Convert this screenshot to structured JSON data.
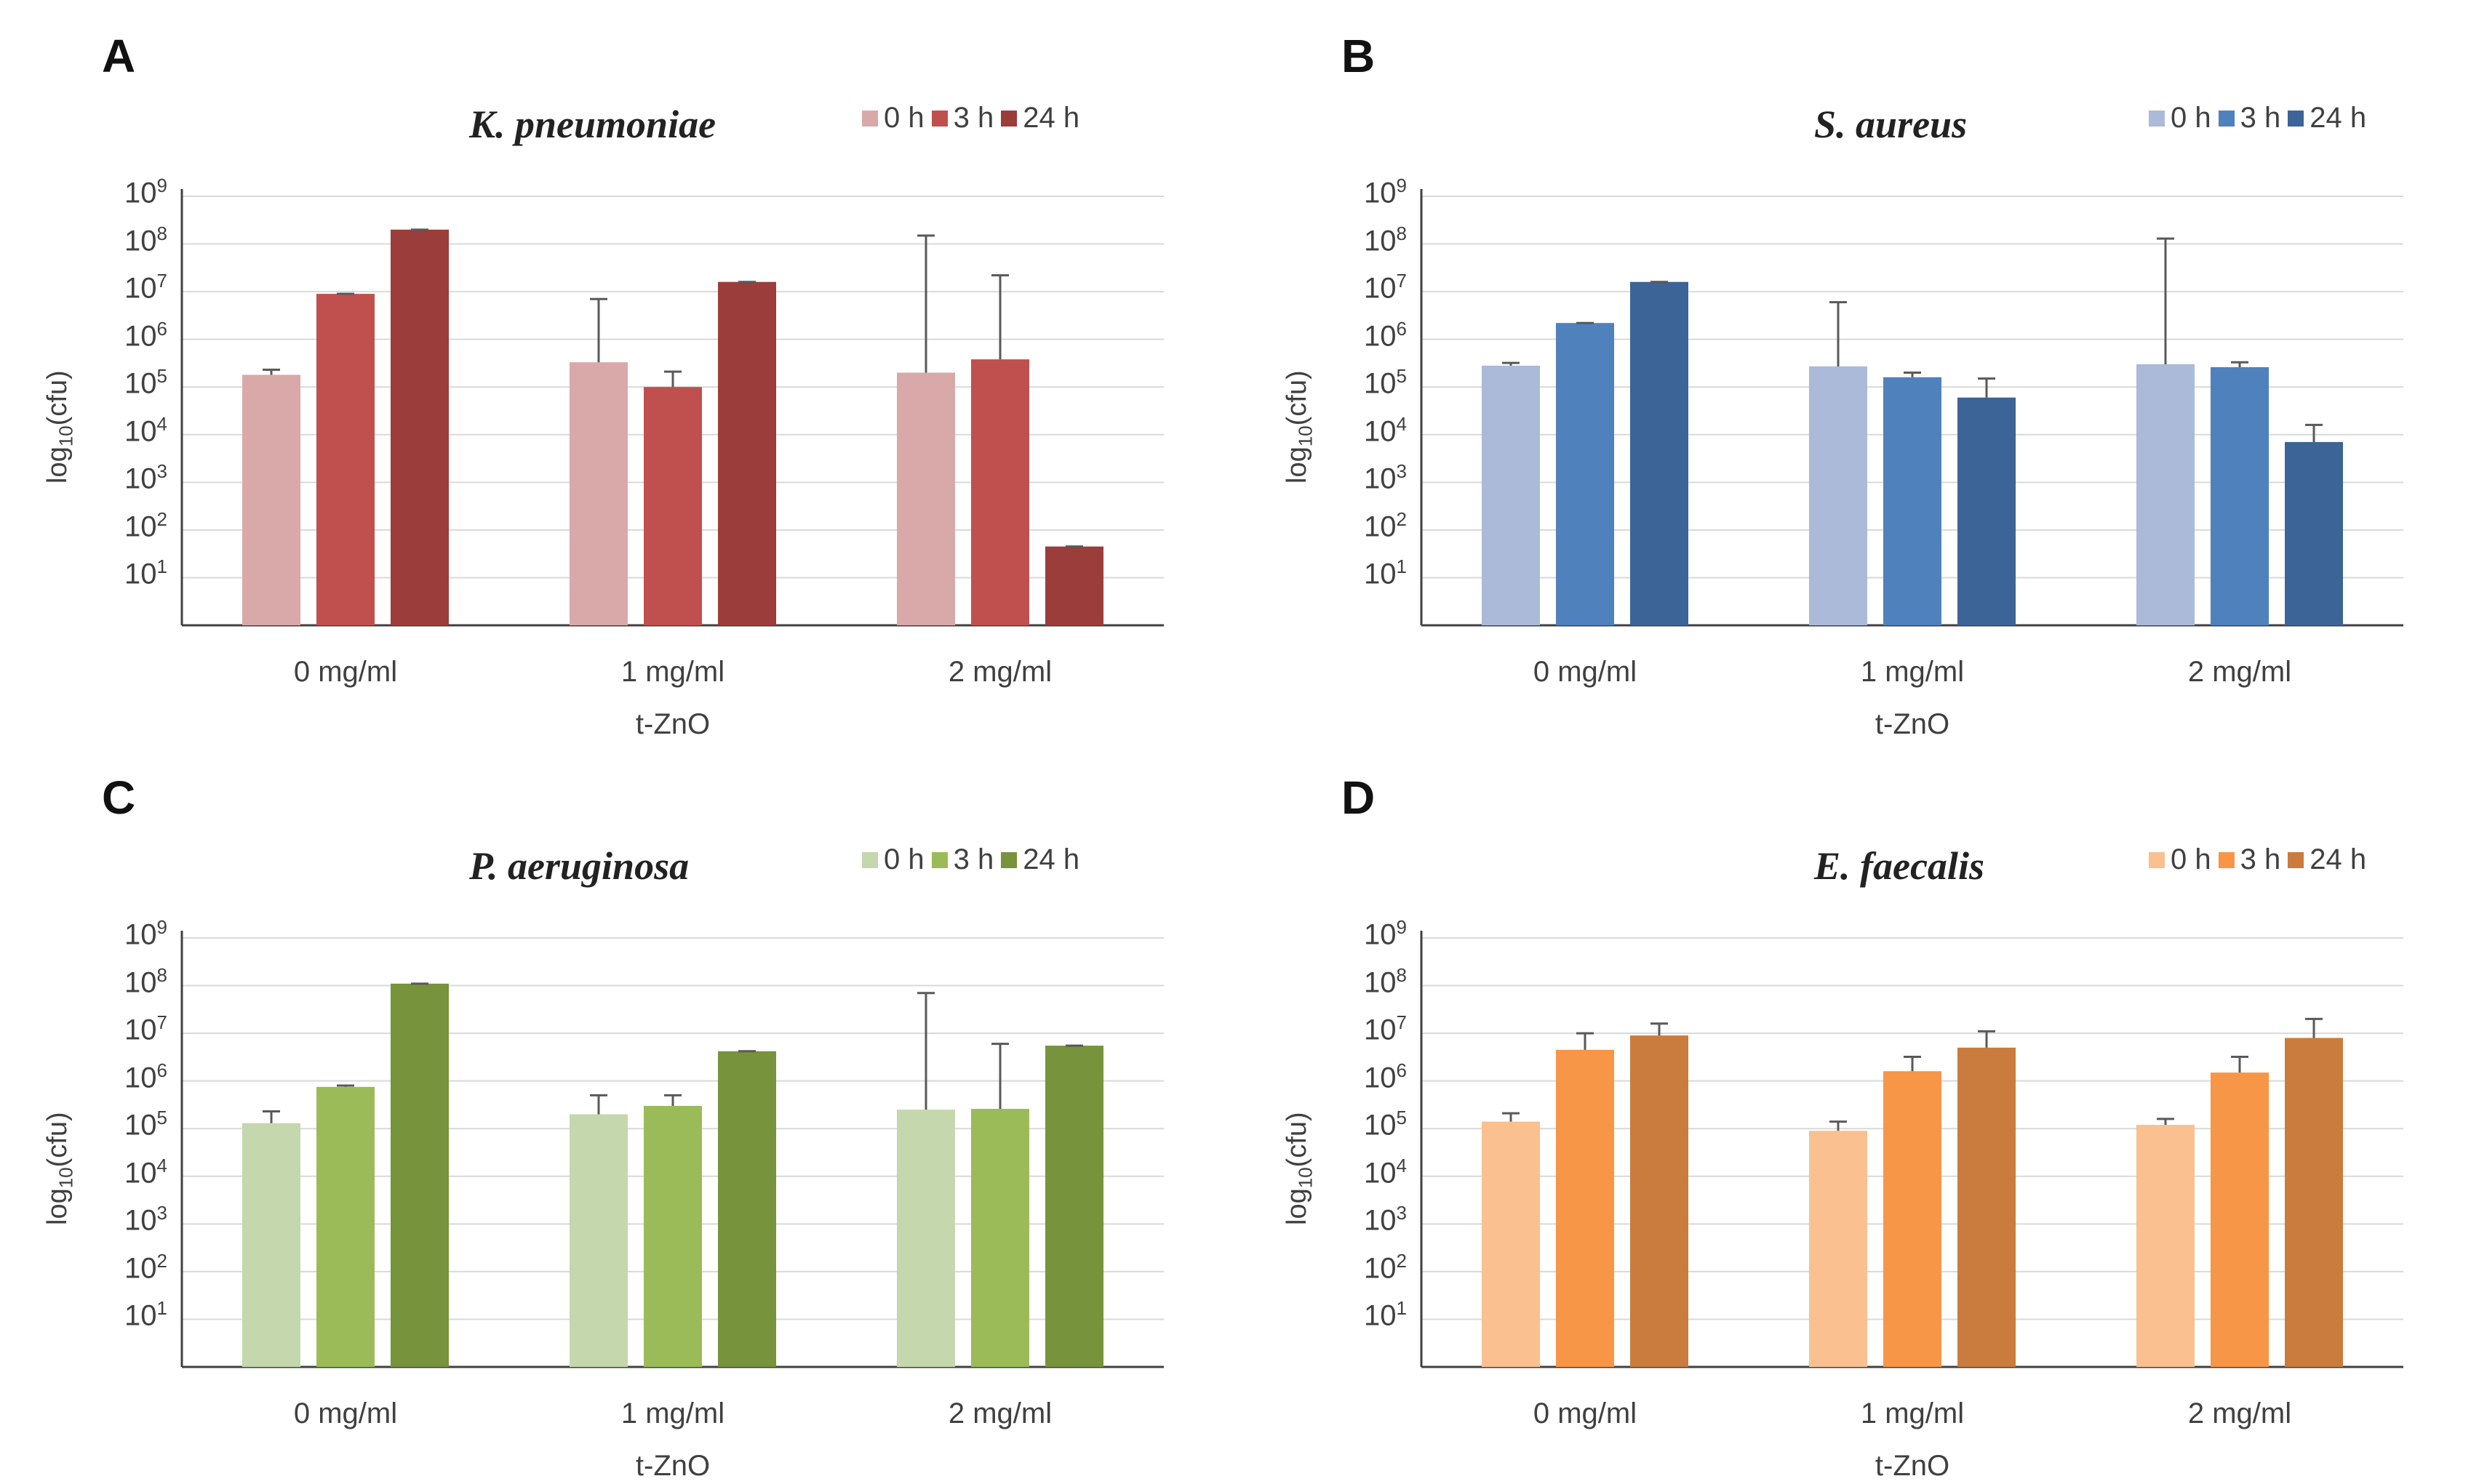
{
  "chart_data": [
    {
      "panel": "A",
      "type": "bar",
      "title": "K. pneumoniae",
      "xlabel": "t-ZnO",
      "ylabel_main": "log",
      "ylabel_sub": "10",
      "ylabel_end": "(cfu)",
      "yscale": "log",
      "ylim": [
        1,
        1000000000
      ],
      "ytick_base": "10",
      "yticks": [
        "1",
        "2",
        "3",
        "4",
        "5",
        "6",
        "7",
        "8",
        "9"
      ],
      "categories": [
        "0 mg/ml",
        "1 mg/ml",
        "2 mg/ml"
      ],
      "series": [
        {
          "name": "0 h",
          "color": "#d9a9a9",
          "values": [
            180000,
            330000,
            200000
          ],
          "errors": [
            230000,
            7000000,
            150000000
          ]
        },
        {
          "name": "3 h",
          "color": "#c0504d",
          "values": [
            9000000,
            100000,
            380000
          ],
          "errors": [
            9000000,
            210000,
            22000000
          ]
        },
        {
          "name": "24 h",
          "color": "#9b3d3b",
          "values": [
            200000000,
            16000000,
            45
          ],
          "errors": [
            200000000,
            16000000,
            45
          ]
        }
      ]
    },
    {
      "panel": "B",
      "type": "bar",
      "title": "S. aureus",
      "xlabel": "t-ZnO",
      "ylabel_main": "log",
      "ylabel_sub": "10",
      "ylabel_end": "(cfu)",
      "yscale": "log",
      "ylim": [
        1,
        1000000000
      ],
      "ytick_base": "10",
      "yticks": [
        "1",
        "2",
        "3",
        "4",
        "5",
        "6",
        "7",
        "8",
        "9"
      ],
      "categories": [
        "0 mg/ml",
        "1 mg/ml",
        "2 mg/ml"
      ],
      "series": [
        {
          "name": "0 h",
          "color": "#aabad8",
          "values": [
            280000,
            270000,
            300000
          ],
          "errors": [
            320000,
            6000000,
            130000000
          ]
        },
        {
          "name": "3 h",
          "color": "#4f81bd",
          "values": [
            2200000,
            160000,
            260000
          ],
          "errors": [
            2200000,
            200000,
            330000
          ]
        },
        {
          "name": "24 h",
          "color": "#3c6496",
          "values": [
            16000000,
            60000,
            7000
          ],
          "errors": [
            16000000,
            150000,
            16000
          ]
        }
      ]
    },
    {
      "panel": "C",
      "type": "bar",
      "title": "P. aeruginosa",
      "xlabel": "t-ZnO",
      "ylabel_main": "log",
      "ylabel_sub": "10",
      "ylabel_end": "(cfu)",
      "yscale": "log",
      "ylim": [
        1,
        1000000000
      ],
      "ytick_base": "10",
      "yticks": [
        "1",
        "2",
        "3",
        "4",
        "5",
        "6",
        "7",
        "8",
        "9"
      ],
      "categories": [
        "0 mg/ml",
        "1 mg/ml",
        "2 mg/ml"
      ],
      "series": [
        {
          "name": "0 h",
          "color": "#c4d7ad",
          "values": [
            130000,
            200000,
            250000
          ],
          "errors": [
            230000,
            500000,
            70000000
          ]
        },
        {
          "name": "3 h",
          "color": "#9bbb59",
          "values": [
            750000,
            300000,
            260000
          ],
          "errors": [
            800000,
            500000,
            6000000
          ]
        },
        {
          "name": "24 h",
          "color": "#77933c",
          "values": [
            110000000,
            4200000,
            5500000
          ],
          "errors": [
            110000000,
            4200000,
            5500000
          ]
        }
      ]
    },
    {
      "panel": "D",
      "type": "bar",
      "title": "E. faecalis",
      "xlabel": "t-ZnO",
      "ylabel_main": "log",
      "ylabel_sub": "10",
      "ylabel_end": "(cfu)",
      "yscale": "log",
      "ylim": [
        1,
        1000000000
      ],
      "ytick_base": "10",
      "yticks": [
        "1",
        "2",
        "3",
        "4",
        "5",
        "6",
        "7",
        "8",
        "9"
      ],
      "categories": [
        "0 mg/ml",
        "1 mg/ml",
        "2 mg/ml"
      ],
      "series": [
        {
          "name": "0 h",
          "color": "#fac090",
          "values": [
            140000,
            90000,
            120000
          ],
          "errors": [
            210000,
            140000,
            160000
          ]
        },
        {
          "name": "3 h",
          "color": "#f79646",
          "values": [
            4500000,
            1600000,
            1500000
          ],
          "errors": [
            10000000,
            3200000,
            3200000
          ]
        },
        {
          "name": "24 h",
          "color": "#c97c3d",
          "values": [
            9000000,
            5000000,
            8000000
          ],
          "errors": [
            16000000,
            11000000,
            20000000
          ]
        }
      ]
    }
  ]
}
